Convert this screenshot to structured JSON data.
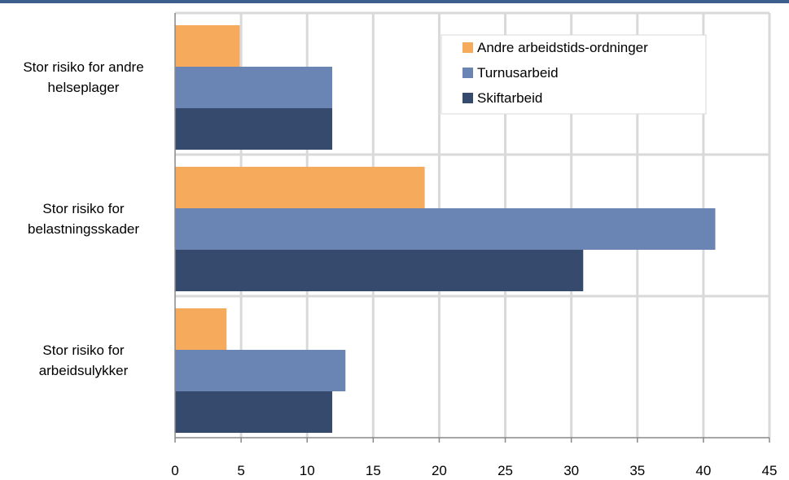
{
  "chart_data": {
    "type": "bar",
    "orientation": "horizontal",
    "categories": [
      "Stor risiko for andre\nhelseplager",
      "Stor risiko for\nbelastningsskader",
      "Stor risiko for\narbeidsulykker"
    ],
    "series": [
      {
        "name": "Andre arbeidstids-ordninger",
        "color": "#f6aa5c",
        "values": [
          4.9,
          18.9,
          3.9
        ]
      },
      {
        "name": "Turnusarbeid",
        "color": "#6a84b3",
        "values": [
          11.9,
          40.9,
          12.9
        ]
      },
      {
        "name": "Skiftarbeid",
        "color": "#354a6d",
        "values": [
          11.9,
          30.9,
          11.9
        ]
      }
    ],
    "xlim": [
      0,
      45
    ],
    "xticks": [
      "0",
      "5",
      "10",
      "15",
      "20",
      "25",
      "30",
      "35",
      "40",
      "45"
    ],
    "grid": true,
    "legend_position": "top-right"
  }
}
